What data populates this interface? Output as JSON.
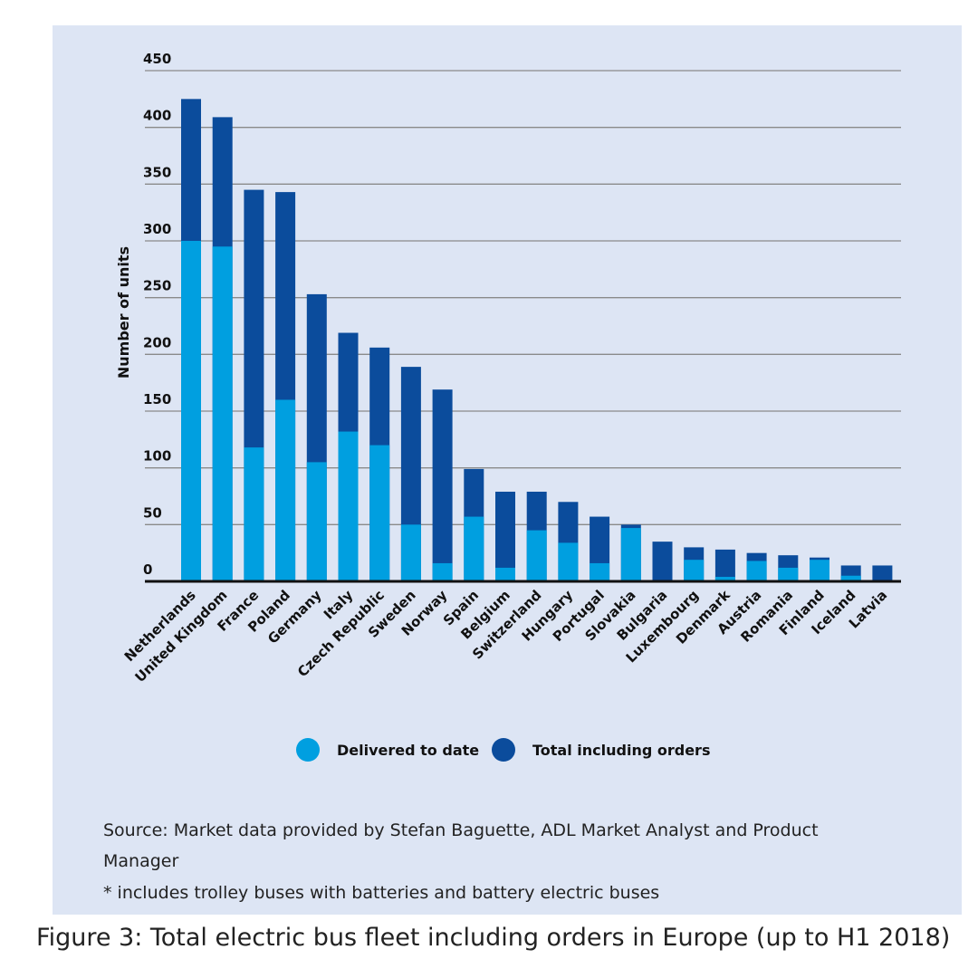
{
  "chart_data": {
    "type": "bar",
    "y_label": "Number of units",
    "categories": [
      "Netherlands",
      "United Kingdom",
      "France",
      "Poland",
      "Germany",
      "Italy",
      "Czech Republic",
      "Sweden",
      "Norway",
      "Spain",
      "Belgium",
      "Switzerland",
      "Hungary",
      "Portugal",
      "Slovakia",
      "Bulgaria",
      "Luxembourg",
      "Denmark",
      "Austria",
      "Romania",
      "Finland",
      "Iceland",
      "Latvia"
    ],
    "series": [
      {
        "name": "Total including orders",
        "color": "#0b4c9c",
        "values": [
          425,
          409,
          345,
          343,
          253,
          219,
          206,
          189,
          169,
          99,
          79,
          79,
          70,
          57,
          50,
          35,
          30,
          28,
          25,
          23,
          21,
          14,
          14
        ]
      },
      {
        "name": "Delivered to date",
        "color": "#009fe0",
        "values": [
          300,
          295,
          118,
          160,
          105,
          132,
          120,
          50,
          16,
          57,
          12,
          45,
          34,
          16,
          47,
          0,
          19,
          4,
          18,
          12,
          19,
          5,
          0
        ]
      }
    ],
    "legend_order": [
      1,
      0
    ],
    "ylim": [
      0,
      450
    ],
    "yticks": [
      0,
      50,
      100,
      150,
      200,
      250,
      300,
      350,
      400,
      450
    ],
    "grid": true,
    "source": "Source: Market data provided by Stefan Baguette, ADL Market Analyst and Product Manager",
    "footnote": "* includes trolley buses with batteries and battery electric buses",
    "caption": "Figure 3: Total electric bus fleet including orders in Europe (up to H1 2018)"
  }
}
